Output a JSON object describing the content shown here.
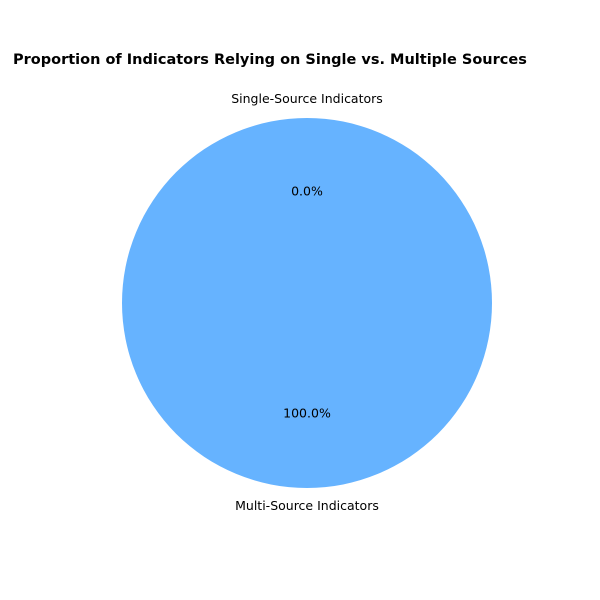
{
  "chart_data": {
    "type": "pie",
    "title": "Proportion of Indicators Relying on Single vs. Multiple Sources",
    "slices": [
      {
        "label": "Single-Source Indicators",
        "value": 0,
        "pct_label": "0.0%",
        "color": "#ff9999"
      },
      {
        "label": "Multi-Source Indicators",
        "value": 100,
        "pct_label": "100.0%",
        "color": "#66b3ff"
      }
    ],
    "start_angle_deg": 90,
    "legend": "none"
  }
}
